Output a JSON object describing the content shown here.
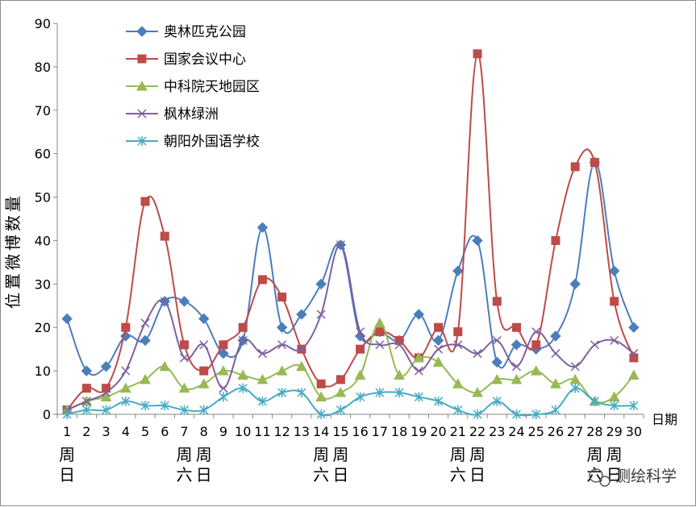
{
  "chart_data": {
    "type": "line",
    "title": "",
    "ylabel": "位置微博数量",
    "xlabel": "日期",
    "ylim": [
      0,
      90
    ],
    "yticks": [
      0,
      10,
      20,
      30,
      40,
      50,
      60,
      70,
      80,
      90
    ],
    "grid": false,
    "legend_position": "top-left",
    "categories": [
      "1",
      "2",
      "3",
      "4",
      "5",
      "6",
      "7",
      "8",
      "9",
      "10",
      "11",
      "12",
      "13",
      "14",
      "15",
      "16",
      "17",
      "18",
      "19",
      "20",
      "21",
      "22",
      "23",
      "24",
      "25",
      "26",
      "27",
      "28",
      "29",
      "30"
    ],
    "weekday_annotations": [
      {
        "day": "1",
        "text": [
          "周",
          "日"
        ]
      },
      {
        "day": "7",
        "text": [
          "周",
          "六"
        ]
      },
      {
        "day": "8",
        "text": [
          "周",
          "日"
        ]
      },
      {
        "day": "14",
        "text": [
          "周",
          "六"
        ]
      },
      {
        "day": "15",
        "text": [
          "周",
          "日"
        ]
      },
      {
        "day": "21",
        "text": [
          "周",
          "六"
        ]
      },
      {
        "day": "22",
        "text": [
          "周",
          "日"
        ]
      },
      {
        "day": "28",
        "text": [
          "周",
          "六"
        ]
      },
      {
        "day": "29",
        "text": [
          "周",
          "日"
        ]
      }
    ],
    "series": [
      {
        "name": "奥林匹克公园",
        "color": "#4a7ebb",
        "marker": "diamond",
        "values": [
          22,
          10,
          11,
          18,
          17,
          26,
          26,
          22,
          14,
          17,
          43,
          20,
          23,
          30,
          39,
          18,
          19,
          17,
          23,
          17,
          33,
          40,
          12,
          16,
          15,
          18,
          30,
          58,
          33,
          20
        ]
      },
      {
        "name": "国家会议中心",
        "color": "#be4b48",
        "marker": "square",
        "values": [
          1,
          6,
          6,
          20,
          49,
          41,
          16,
          10,
          16,
          20,
          31,
          27,
          15,
          7,
          8,
          15,
          19,
          17,
          13,
          20,
          19,
          83,
          26,
          20,
          16,
          40,
          57,
          58,
          26,
          13
        ]
      },
      {
        "name": "中科院天地园区",
        "color": "#98b954",
        "marker": "triangle",
        "values": [
          1,
          3,
          4,
          6,
          8,
          11,
          6,
          7,
          10,
          9,
          8,
          10,
          11,
          4,
          5,
          9,
          21,
          9,
          13,
          12,
          7,
          5,
          8,
          8,
          10,
          7,
          8,
          3,
          4,
          9
        ]
      },
      {
        "name": "枫林绿洲",
        "color": "#7d60a0",
        "marker": "x",
        "values": [
          1,
          3,
          5,
          10,
          21,
          26,
          13,
          16,
          6,
          17,
          14,
          16,
          15,
          23,
          39,
          19,
          16,
          16,
          10,
          15,
          16,
          14,
          17,
          11,
          19,
          14,
          11,
          16,
          17,
          14
        ]
      },
      {
        "name": "朝阳外国语学校",
        "color": "#46aac5",
        "marker": "star",
        "values": [
          0,
          1,
          1,
          3,
          2,
          2,
          1,
          1,
          4,
          6,
          3,
          5,
          5,
          0,
          1,
          4,
          5,
          5,
          4,
          3,
          1,
          0,
          3,
          0,
          0,
          1,
          6,
          3,
          2,
          2
        ]
      }
    ]
  },
  "watermark": {
    "text": "测绘科学",
    "icon": "wechat-icon"
  }
}
